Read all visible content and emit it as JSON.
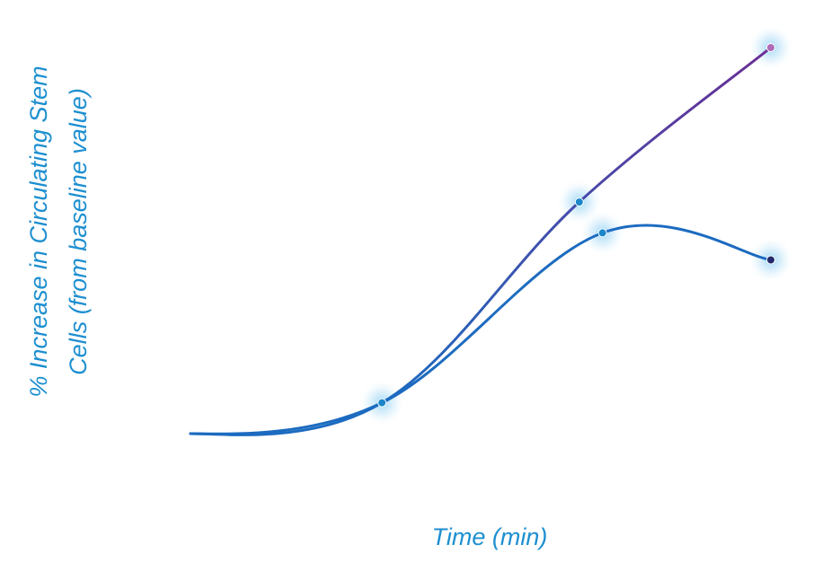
{
  "chart_data": {
    "type": "line",
    "title": "",
    "xlabel": "Time (min)",
    "ylabel_lines": [
      "% Increase in Circulating Stem",
      "Cells (from baseline value)"
    ],
    "grid": false,
    "legend": "none",
    "x_ticks_shown": false,
    "y_ticks_shown": false,
    "note": "Axes carry no tick labels; values are read in relative units (x: 0-100, y: 0-100).",
    "xlim": [
      0,
      100
    ],
    "ylim": [
      0,
      100
    ],
    "series": [
      {
        "color": "#6a2e95",
        "marker_color": "#b06ab8",
        "points": [
          {
            "x": 0,
            "y": 0
          },
          {
            "x": 33,
            "y": 8
          },
          {
            "x": 67,
            "y": 60
          },
          {
            "x": 100,
            "y": 100
          }
        ]
      },
      {
        "color": "#1c6bc0",
        "marker_color": "#23296b",
        "points": [
          {
            "x": 0,
            "y": 0
          },
          {
            "x": 33,
            "y": 8
          },
          {
            "x": 71,
            "y": 52
          },
          {
            "x": 100,
            "y": 45
          }
        ]
      }
    ]
  }
}
